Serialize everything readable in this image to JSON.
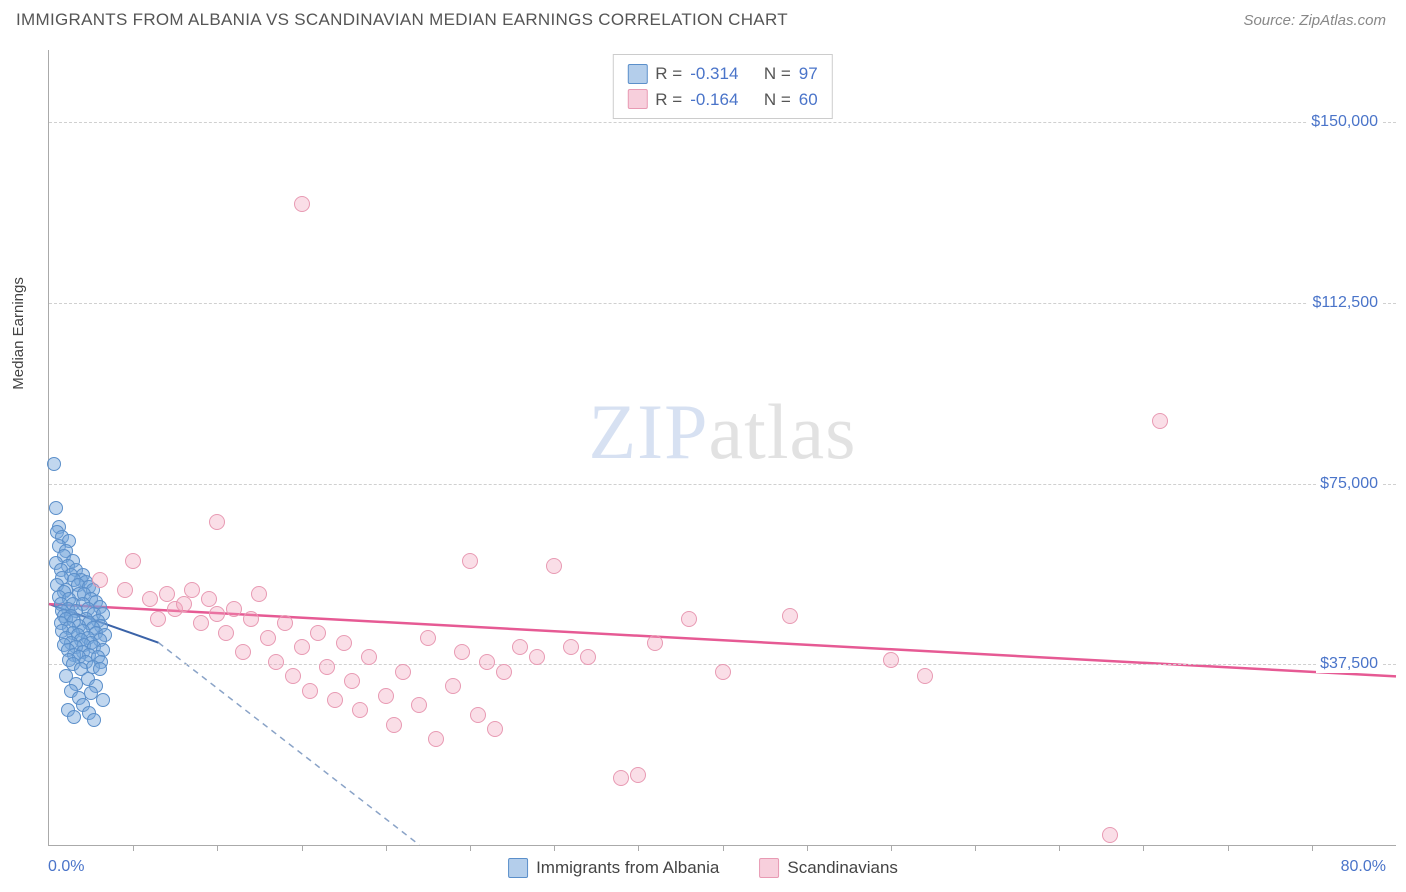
{
  "title": "IMMIGRANTS FROM ALBANIA VS SCANDINAVIAN MEDIAN EARNINGS CORRELATION CHART",
  "source_label": "Source: ZipAtlas.com",
  "watermark": {
    "z": "ZIP",
    "rest": "atlas"
  },
  "chart": {
    "type": "scatter",
    "xaxis": {
      "label_min": "0.0%",
      "label_max": "80.0%",
      "xlim": [
        0,
        80
      ],
      "xtick_step": 5,
      "title": ""
    },
    "yaxis": {
      "title": "Median Earnings",
      "ylim": [
        0,
        165000
      ],
      "ticks": [
        {
          "v": 37500,
          "label": "$37,500"
        },
        {
          "v": 75000,
          "label": "$75,000"
        },
        {
          "v": 112500,
          "label": "$112,500"
        },
        {
          "v": 150000,
          "label": "$150,000"
        }
      ],
      "grid_color": "#d0d0d0"
    },
    "background_color": "#ffffff",
    "axis_color": "#aaaaaa",
    "series": [
      {
        "label": "Immigrants from Albania",
        "color_fill": "rgba(118,166,219,0.45)",
        "color_stroke": "#5b8fca",
        "marker_size": 14,
        "R": "-0.314",
        "N": "97",
        "trend": {
          "x1": 0,
          "y1": 50000,
          "x2": 6.5,
          "y2": 42000,
          "ext_x2": 22,
          "ext_y2": 0,
          "color": "#3b63a8",
          "width": 2
        },
        "points": [
          [
            0.3,
            79000
          ],
          [
            0.4,
            70000
          ],
          [
            0.6,
            66000
          ],
          [
            0.5,
            65000
          ],
          [
            0.8,
            64000
          ],
          [
            1.2,
            63000
          ],
          [
            0.6,
            62000
          ],
          [
            1.0,
            61000
          ],
          [
            0.9,
            60000
          ],
          [
            1.4,
            59000
          ],
          [
            0.4,
            58500
          ],
          [
            1.1,
            58000
          ],
          [
            1.6,
            57000
          ],
          [
            0.7,
            57000
          ],
          [
            1.3,
            56000
          ],
          [
            2.0,
            56000
          ],
          [
            0.8,
            55500
          ],
          [
            1.9,
            55000
          ],
          [
            1.5,
            55000
          ],
          [
            2.2,
            54500
          ],
          [
            0.5,
            54000
          ],
          [
            1.7,
            54000
          ],
          [
            2.4,
            53500
          ],
          [
            1.0,
            53000
          ],
          [
            2.6,
            53000
          ],
          [
            0.9,
            52500
          ],
          [
            1.8,
            52000
          ],
          [
            2.1,
            52000
          ],
          [
            0.6,
            51500
          ],
          [
            1.2,
            51000
          ],
          [
            2.5,
            51000
          ],
          [
            2.8,
            50500
          ],
          [
            0.7,
            50000
          ],
          [
            1.4,
            50000
          ],
          [
            2.0,
            50000
          ],
          [
            3.0,
            49500
          ],
          [
            1.1,
            49000
          ],
          [
            2.3,
            49000
          ],
          [
            0.8,
            48500
          ],
          [
            1.6,
            48500
          ],
          [
            2.7,
            48000
          ],
          [
            3.2,
            48000
          ],
          [
            0.9,
            47500
          ],
          [
            1.3,
            47500
          ],
          [
            2.2,
            47000
          ],
          [
            1.0,
            47000
          ],
          [
            2.9,
            46500
          ],
          [
            1.5,
            46500
          ],
          [
            0.7,
            46000
          ],
          [
            2.4,
            46000
          ],
          [
            1.8,
            45500
          ],
          [
            3.1,
            45500
          ],
          [
            1.2,
            45000
          ],
          [
            2.6,
            45000
          ],
          [
            0.8,
            44500
          ],
          [
            2.0,
            44500
          ],
          [
            1.4,
            44000
          ],
          [
            2.8,
            44000
          ],
          [
            1.7,
            43500
          ],
          [
            3.3,
            43500
          ],
          [
            1.0,
            43000
          ],
          [
            2.3,
            43000
          ],
          [
            1.9,
            42500
          ],
          [
            3.0,
            42500
          ],
          [
            1.3,
            42000
          ],
          [
            2.5,
            42000
          ],
          [
            0.9,
            41500
          ],
          [
            2.1,
            41500
          ],
          [
            1.6,
            41000
          ],
          [
            2.7,
            41000
          ],
          [
            1.1,
            40500
          ],
          [
            3.2,
            40500
          ],
          [
            2.0,
            40000
          ],
          [
            1.5,
            39500
          ],
          [
            2.4,
            39500
          ],
          [
            1.8,
            39000
          ],
          [
            2.9,
            39000
          ],
          [
            1.2,
            38500
          ],
          [
            2.2,
            38000
          ],
          [
            3.1,
            38000
          ],
          [
            1.4,
            37500
          ],
          [
            2.6,
            37000
          ],
          [
            1.9,
            36500
          ],
          [
            3.0,
            36500
          ],
          [
            1.0,
            35000
          ],
          [
            2.3,
            34500
          ],
          [
            1.6,
            33500
          ],
          [
            2.8,
            33000
          ],
          [
            1.3,
            32000
          ],
          [
            2.5,
            31500
          ],
          [
            1.8,
            30500
          ],
          [
            3.2,
            30000
          ],
          [
            2.0,
            29000
          ],
          [
            1.1,
            28000
          ],
          [
            2.4,
            27500
          ],
          [
            1.5,
            26500
          ],
          [
            2.7,
            26000
          ]
        ]
      },
      {
        "label": "Scandinavians",
        "color_fill": "rgba(240,160,185,0.35)",
        "color_stroke": "#e89ab3",
        "marker_size": 16,
        "R": "-0.164",
        "N": "60",
        "trend": {
          "x1": 0,
          "y1": 50000,
          "x2": 80,
          "y2": 35000,
          "color": "#e65a94",
          "width": 2.5
        },
        "points": [
          [
            15,
            133000
          ],
          [
            66,
            88000
          ],
          [
            10,
            67000
          ],
          [
            63,
            2000
          ],
          [
            3,
            55000
          ],
          [
            4.5,
            53000
          ],
          [
            5,
            59000
          ],
          [
            6,
            51000
          ],
          [
            6.5,
            47000
          ],
          [
            7,
            52000
          ],
          [
            7.5,
            49000
          ],
          [
            8,
            50000
          ],
          [
            8.5,
            53000
          ],
          [
            9,
            46000
          ],
          [
            9.5,
            51000
          ],
          [
            10,
            48000
          ],
          [
            10.5,
            44000
          ],
          [
            11,
            49000
          ],
          [
            11.5,
            40000
          ],
          [
            12,
            47000
          ],
          [
            12.5,
            52000
          ],
          [
            13,
            43000
          ],
          [
            13.5,
            38000
          ],
          [
            14,
            46000
          ],
          [
            14.5,
            35000
          ],
          [
            15,
            41000
          ],
          [
            15.5,
            32000
          ],
          [
            16,
            44000
          ],
          [
            16.5,
            37000
          ],
          [
            17,
            30000
          ],
          [
            17.5,
            42000
          ],
          [
            18,
            34000
          ],
          [
            18.5,
            28000
          ],
          [
            19,
            39000
          ],
          [
            20,
            31000
          ],
          [
            20.5,
            25000
          ],
          [
            21,
            36000
          ],
          [
            22,
            29000
          ],
          [
            22.5,
            43000
          ],
          [
            23,
            22000
          ],
          [
            24,
            33000
          ],
          [
            24.5,
            40000
          ],
          [
            25,
            59000
          ],
          [
            25.5,
            27000
          ],
          [
            26,
            38000
          ],
          [
            26.5,
            24000
          ],
          [
            27,
            36000
          ],
          [
            28,
            41000
          ],
          [
            29,
            39000
          ],
          [
            30,
            58000
          ],
          [
            31,
            41000
          ],
          [
            32,
            39000
          ],
          [
            34,
            14000
          ],
          [
            35,
            14500
          ],
          [
            36,
            42000
          ],
          [
            38,
            47000
          ],
          [
            40,
            36000
          ],
          [
            44,
            47500
          ],
          [
            50,
            38500
          ],
          [
            52,
            35000
          ]
        ]
      }
    ],
    "legend_labels": {
      "r": "R =",
      "n": "N ="
    }
  }
}
